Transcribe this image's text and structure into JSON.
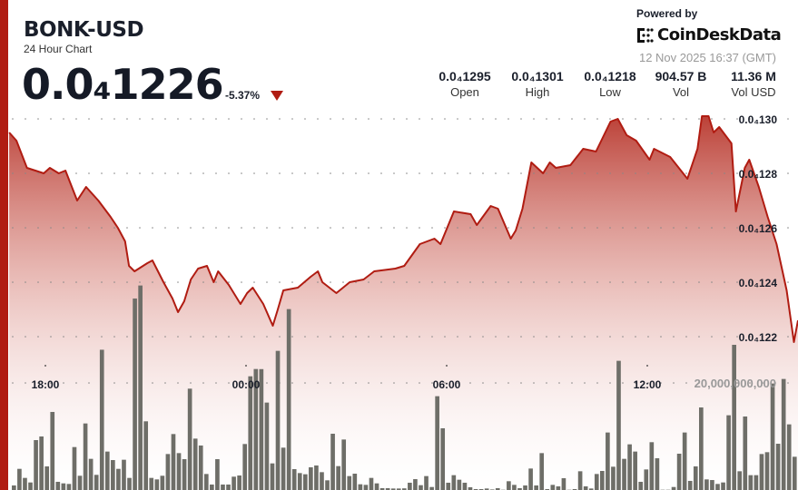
{
  "header": {
    "symbol": "BONK-USD",
    "subtitle": "24 Hour Chart",
    "price": "0.0₄1226",
    "change": "-5.37%",
    "change_direction_icon": "triangle-down-icon",
    "accent_color": "#b01c12"
  },
  "branding": {
    "powered_by": "Powered by",
    "logo_text": "CoinDeskData",
    "timestamp": "12 Nov 2025 16:37 (GMT)"
  },
  "stats": [
    {
      "value": "0.0₄1295",
      "label": "Open"
    },
    {
      "value": "0.0₄1301",
      "label": "High"
    },
    {
      "value": "0.0₄1218",
      "label": "Low"
    },
    {
      "value": "904.57 B",
      "label": "Vol"
    },
    {
      "value": "11.36 M",
      "label": "Vol USD"
    }
  ],
  "chart_data": {
    "type": "area",
    "line_color": "#b01c12",
    "volume_bar_color": "#6e6e68",
    "grid": true,
    "x_range": [
      "16:50",
      "16:40"
    ],
    "x_ticks": [
      "18:00",
      "00:00",
      "06:00",
      "12:00"
    ],
    "y_ticks": [
      {
        "value": 1.3e-05,
        "label": "0.0₄130"
      },
      {
        "value": 1.28e-05,
        "label": "0.0₄128"
      },
      {
        "value": 1.26e-05,
        "label": "0.0₄126"
      },
      {
        "value": 1.24e-05,
        "label": "0.0₄124"
      },
      {
        "value": 1.22e-05,
        "label": "0.0₄122"
      }
    ],
    "volume_tick": {
      "value": 20000000000,
      "label": "20,000,000,000"
    },
    "price_series": [
      [
        "16:55",
        1.295e-05
      ],
      [
        "17:08",
        1.292e-05
      ],
      [
        "17:27",
        1.282e-05
      ],
      [
        "17:57",
        1.28e-05
      ],
      [
        "18:08",
        1.282e-05
      ],
      [
        "18:24",
        1.28e-05
      ],
      [
        "18:36",
        1.281e-05
      ],
      [
        "18:57",
        1.27e-05
      ],
      [
        "19:13",
        1.275e-05
      ],
      [
        "19:35",
        1.27e-05
      ],
      [
        "19:57",
        1.264e-05
      ],
      [
        "20:10",
        1.26e-05
      ],
      [
        "20:23",
        1.255e-05
      ],
      [
        "20:30",
        1.246e-05
      ],
      [
        "20:40",
        1.244e-05
      ],
      [
        "21:03",
        1.247e-05
      ],
      [
        "21:12",
        1.248e-05
      ],
      [
        "21:32",
        1.24e-05
      ],
      [
        "21:48",
        1.234e-05
      ],
      [
        "21:58",
        1.229e-05
      ],
      [
        "22:09",
        1.233e-05
      ],
      [
        "22:21",
        1.241e-05
      ],
      [
        "22:34",
        1.245e-05
      ],
      [
        "22:50",
        1.246e-05
      ],
      [
        "23:02",
        1.24e-05
      ],
      [
        "23:10",
        1.244e-05
      ],
      [
        "23:29",
        1.239e-05
      ],
      [
        "23:50",
        1.232e-05
      ],
      [
        "00:02",
        1.236e-05
      ],
      [
        "00:12",
        1.238e-05
      ],
      [
        "00:31",
        1.232e-05
      ],
      [
        "00:48",
        1.224e-05
      ],
      [
        "00:57",
        1.23e-05
      ],
      [
        "01:07",
        1.237e-05
      ],
      [
        "01:33",
        1.238e-05
      ],
      [
        "01:56",
        1.242e-05
      ],
      [
        "02:09",
        1.244e-05
      ],
      [
        "02:17",
        1.24e-05
      ],
      [
        "02:42",
        1.236e-05
      ],
      [
        "03:06",
        1.24e-05
      ],
      [
        "03:31",
        1.241e-05
      ],
      [
        "03:50",
        1.244e-05
      ],
      [
        "04:28",
        1.245e-05
      ],
      [
        "04:44",
        1.246e-05
      ],
      [
        "05:12",
        1.254e-05
      ],
      [
        "05:38",
        1.256e-05
      ],
      [
        "05:49",
        1.254e-05
      ],
      [
        "06:13",
        1.266e-05
      ],
      [
        "06:43",
        1.265e-05
      ],
      [
        "06:54",
        1.261e-05
      ],
      [
        "07:19",
        1.268e-05
      ],
      [
        "07:32",
        1.267e-05
      ],
      [
        "07:55",
        1.256e-05
      ],
      [
        "08:04",
        1.259e-05
      ],
      [
        "08:16",
        1.267e-05
      ],
      [
        "08:32",
        1.284e-05
      ],
      [
        "08:53",
        1.28e-05
      ],
      [
        "09:05",
        1.284e-05
      ],
      [
        "09:16",
        1.282e-05
      ],
      [
        "09:42",
        1.283e-05
      ],
      [
        "10:05",
        1.289e-05
      ],
      [
        "10:28",
        1.288e-05
      ],
      [
        "10:54",
        1.299e-05
      ],
      [
        "11:07",
        1.3e-05
      ],
      [
        "11:23",
        1.294e-05
      ],
      [
        "11:40",
        1.292e-05
      ],
      [
        "12:04",
        1.285e-05
      ],
      [
        "12:12",
        1.289e-05
      ],
      [
        "12:41",
        1.286e-05
      ],
      [
        "13:12",
        1.278e-05
      ],
      [
        "13:30",
        1.289e-05
      ],
      [
        "13:38",
        1.301e-05
      ],
      [
        "13:50",
        1.301e-05
      ],
      [
        "13:59",
        1.295e-05
      ],
      [
        "14:09",
        1.297e-05
      ],
      [
        "14:31",
        1.291e-05
      ],
      [
        "14:39",
        1.266e-05
      ],
      [
        "14:55",
        1.282e-05
      ],
      [
        "15:03",
        1.285e-05
      ],
      [
        "15:20",
        1.275e-05
      ],
      [
        "15:36",
        1.264e-05
      ],
      [
        "15:52",
        1.254e-05
      ],
      [
        "16:10",
        1.237e-05
      ],
      [
        "16:23",
        1.218e-05
      ],
      [
        "16:31",
        1.226e-05
      ]
    ],
    "volume_series": [
      850000000,
      3950000000,
      2260000000,
      1410000000,
      9320000000,
      10000000000,
      4410000000,
      14580000000,
      1530000000,
      1240000000,
      1130000000,
      8020000000,
      2660000000,
      12430000000,
      5820000000,
      2830000000,
      26200000000,
      7180000000,
      5590000000,
      3950000000,
      5650000000,
      2260000000,
      35770000000,
      38200000000,
      12830000000,
      2260000000,
      1980000000,
      2660000000,
      6720000000,
      10450000000,
      6890000000,
      5760000000,
      18930000000,
      9600000000,
      8310000000,
      2990000000,
      1020000000,
      5760000000,
      1020000000,
      1020000000,
      2490000000,
      2710000000,
      8590000000,
      21240000000,
      22600000000,
      22580000000,
      16330000000,
      4970000000,
      25990000000,
      7910000000,
      33790000000,
      3900000000,
      3160000000,
      2940000000,
      4240000000,
      4580000000,
      3330000000,
      1810000000,
      10510000000,
      4460000000,
      9430000000,
      2600000000,
      3050000000,
      1070000000,
      960000000,
      2260000000,
      1240000000,
      340000000,
      340000000,
      280000000,
      280000000,
      310000000,
      1360000000,
      2030000000,
      900000000,
      2600000000,
      560000000,
      17520000000,
      11530000000,
      1360000000,
      2770000000,
      1920000000,
      1360000000,
      510000000,
      170000000,
      170000000,
      280000000,
      100000000,
      340000000,
      50000000,
      1640000000,
      960000000,
      340000000,
      850000000,
      4010000000,
      850000000,
      6890000000,
      170000000,
      960000000,
      680000000,
      2200000000,
      50000000,
      170000000,
      3500000000,
      680000000,
      280000000,
      2990000000,
      3560000000,
      10740000000,
      4350000000,
      24130000000,
      5820000000,
      8530000000,
      7180000000,
      1530000000,
      3840000000,
      8930000000,
      5930000000,
      50000000,
      50000000,
      560000000,
      6780000000,
      10740000000,
      1700000000,
      4410000000,
      15420000000,
      1980000000,
      1860000000,
      1130000000,
      1410000000,
      13960000000,
      27120000000,
      3500000000,
      13730000000,
      2770000000,
      2770000000,
      6720000000,
      7060000000,
      19890000000,
      8640000000,
      20740000000,
      12260000000,
      6210000000
    ]
  }
}
